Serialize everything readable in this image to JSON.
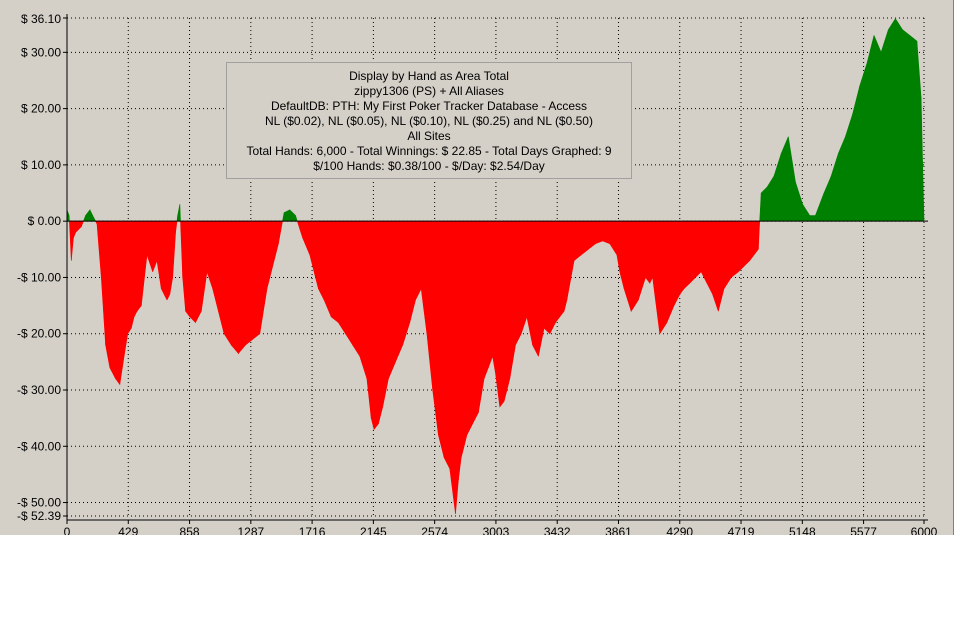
{
  "chart_data": {
    "type": "area",
    "info_lines": [
      "Display by Hand as Area Total",
      "zippy1306 (PS) + All Aliases",
      "DefaultDB: PTH: My First Poker Tracker Database - Access",
      "NL ($0.02), NL ($0.05), NL ($0.10), NL ($0.25) and NL ($0.50)",
      "All Sites",
      "Total Hands: 6,000 - Total Winnings: $ 22.85 - Total Days Graphed: 9",
      "$/100 Hands: $0.38/100 - $/Day: $2.54/Day"
    ],
    "xlim": [
      0,
      6000
    ],
    "ylim": [
      -52.39,
      36.1
    ],
    "x_ticks": [
      0,
      429,
      858,
      1287,
      1716,
      2145,
      2574,
      3003,
      3432,
      3861,
      4290,
      4719,
      5148,
      5577,
      6000
    ],
    "x_tick_labels": [
      "0",
      "429",
      "858",
      "1287",
      "1716",
      "2145",
      "2574",
      "3003",
      "3432",
      "3861",
      "4290",
      "4719",
      "5148",
      "5577",
      "6000"
    ],
    "y_ticks": [
      36.1,
      30,
      20,
      10,
      0,
      -10,
      -20,
      -30,
      -40,
      -50,
      -52.39
    ],
    "y_tick_labels": [
      "$ 36.10",
      "$ 30.00",
      "$ 20.00",
      "$ 10.00",
      "$ 0.00",
      "-$ 10.00",
      "-$ 20.00",
      "-$ 30.00",
      "-$ 40.00",
      "-$ 50.00",
      "-$ 52.39"
    ],
    "grid": true,
    "colors": {
      "positive": "#008000",
      "negative": "#ff0000",
      "background": "#d4d0c8",
      "grid": "#000000"
    },
    "x": [
      0,
      15,
      30,
      45,
      60,
      80,
      100,
      130,
      160,
      190,
      210,
      240,
      270,
      300,
      340,
      370,
      400,
      425,
      450,
      470,
      490,
      520,
      560,
      600,
      630,
      660,
      700,
      720,
      740,
      760,
      775,
      790,
      810,
      830,
      860,
      900,
      940,
      980,
      1020,
      1060,
      1100,
      1150,
      1200,
      1250,
      1300,
      1350,
      1400,
      1440,
      1480,
      1520,
      1560,
      1580,
      1600,
      1650,
      1700,
      1740,
      1760,
      1800,
      1850,
      1900,
      1950,
      2000,
      2050,
      2100,
      2130,
      2150,
      2180,
      2210,
      2250,
      2300,
      2350,
      2400,
      2440,
      2480,
      2520,
      2560,
      2600,
      2640,
      2680,
      2720,
      2740,
      2760,
      2780,
      2800,
      2840,
      2880,
      2920,
      2950,
      2980,
      3000,
      3030,
      3060,
      3100,
      3140,
      3180,
      3220,
      3260,
      3300,
      3340,
      3380,
      3420,
      3450,
      3480,
      3500,
      3550,
      3600,
      3650,
      3700,
      3750,
      3800,
      3850,
      3870,
      3900,
      3950,
      4000,
      4050,
      4080,
      4100,
      4150,
      4200,
      4250,
      4290,
      4320,
      4360,
      4400,
      4440,
      4480,
      4520,
      4560,
      4600,
      4650,
      4700,
      4740,
      4780,
      4810,
      4840,
      4860,
      4900,
      4950,
      5000,
      5050,
      5100,
      5150,
      5200,
      5240,
      5300,
      5350,
      5400,
      5450,
      5500,
      5550,
      5600,
      5650,
      5700,
      5750,
      5800,
      5850,
      5900,
      5950,
      5980,
      6000
    ],
    "y": [
      2,
      1,
      -7,
      -3,
      -2,
      -1.5,
      -1,
      1,
      2,
      0.5,
      -0.5,
      -10,
      -22,
      -26,
      -28,
      -29,
      -24,
      -20,
      -19,
      -17,
      -16,
      -15,
      -6,
      -9,
      -7,
      -12,
      -14,
      -13,
      -10,
      -2,
      1,
      3,
      -10,
      -16,
      -17,
      -18,
      -16,
      -9,
      -12,
      -16,
      -20,
      -22,
      -23.5,
      -22,
      -21,
      -20,
      -12,
      -8,
      -4,
      1.5,
      2,
      1.5,
      1,
      -3,
      -6,
      -10,
      -12,
      -14,
      -17,
      -18,
      -20,
      -22,
      -24,
      -28,
      -35,
      -37,
      -36,
      -33,
      -28,
      -25,
      -22,
      -18,
      -14,
      -12,
      -20,
      -30,
      -38,
      -42,
      -44,
      -52,
      -46,
      -42,
      -40,
      -38,
      -36,
      -34,
      -28,
      -26,
      -24,
      -27,
      -33,
      -32,
      -28,
      -22,
      -20,
      -17,
      -22,
      -24,
      -19,
      -20,
      -18,
      -17,
      -16,
      -14,
      -7,
      -6,
      -5,
      -4,
      -3.5,
      -4,
      -6,
      -9,
      -12,
      -16,
      -14,
      -10,
      -11,
      -10,
      -20,
      -18,
      -15,
      -13,
      -12,
      -11,
      -10,
      -9,
      -11,
      -13,
      -16,
      -12,
      -10,
      -9,
      -8,
      -7,
      -6,
      -5,
      5,
      6,
      8,
      12,
      15,
      7,
      3,
      1,
      1,
      5,
      8,
      12,
      15,
      19,
      24,
      28,
      33,
      30,
      34,
      36,
      34,
      33,
      32,
      22,
      0
    ]
  }
}
